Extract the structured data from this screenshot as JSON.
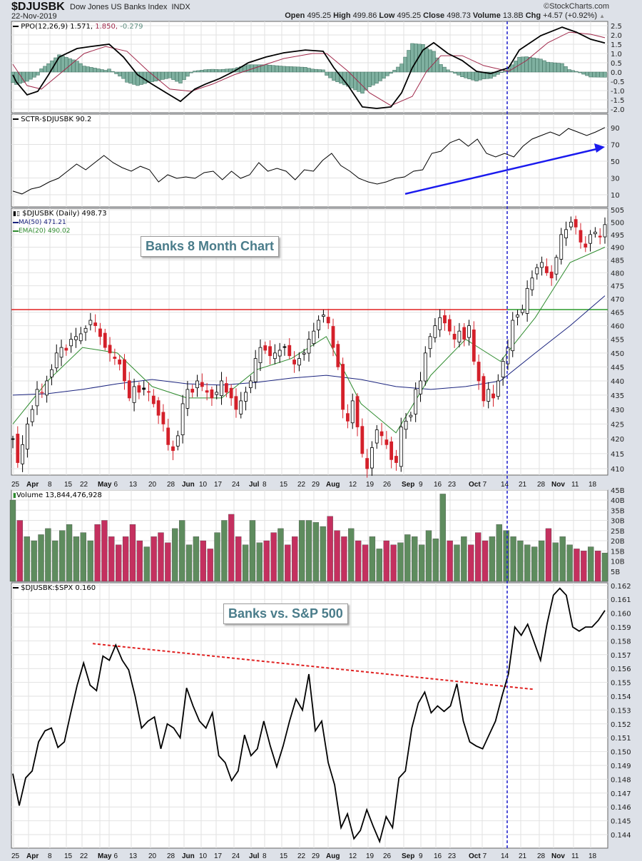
{
  "header": {
    "symbol": "$DJUSBK",
    "name": "Dow Jones US Banks Index",
    "exchange": "INDX",
    "date": "22-Nov-2019",
    "watermark": "©StockCharts.com",
    "open_label": "Open",
    "open": "495.25",
    "high_label": "High",
    "high": "499.86",
    "low_label": "Low",
    "low": "495.25",
    "close_label": "Close",
    "close": "498.73",
    "volume_label": "Volume",
    "volume": "13.8B",
    "chg_label": "Chg",
    "chg": "+4.57 (+0.92%)",
    "chg_icon": "triangle-up-icon"
  },
  "legends": {
    "ppo_main": "PPO(12,26,9) 1.571,",
    "ppo_signal": "1.850,",
    "ppo_hist": "-0.279",
    "sctr": "SCTR-$DJUSBK 90.2",
    "price": "$DJUSBK (Daily) 498.73",
    "ma50": "MA(50) 471.21",
    "ema20": "EMA(20) 490.02",
    "volume": "Volume 13,844,476,928",
    "ratio": "$DJUSBK:$SPX 0.160"
  },
  "annotations": {
    "price_box": "Banks 8 Month Chart",
    "ratio_box": "Banks vs. S&P 500"
  },
  "colors": {
    "candle_up": "#000000",
    "candle_down": "#d4202a",
    "ma50": "#1a237e",
    "ema20": "#2e8b2e",
    "ppo": "#000000",
    "signal": "#a0284a",
    "hist_fill": "#7fb0a0",
    "hist_stroke": "#3f6f5f",
    "vol_up": "#5e8c5e",
    "vol_down": "#c4305f",
    "resistance": "#e02020",
    "support": "#2a9a2a",
    "event_line": "#1a1acc",
    "arrow": "#1a1aee",
    "trend": "#e02020"
  },
  "chart_data": {
    "type": "multi-panel financial chart",
    "x_axis": {
      "unit": "trading-day index (0 = 25 Mar 2019, 166 = 22 Nov 2019)",
      "ticks": [
        {
          "d": 0.2,
          "label": "25",
          "month": false
        },
        {
          "d": 4.4,
          "label": "Apr",
          "month": true
        },
        {
          "d": 10.4,
          "label": "8",
          "month": false
        },
        {
          "d": 15,
          "label": "15",
          "month": false
        },
        {
          "d": 19.4,
          "label": "22",
          "month": false
        },
        {
          "d": 24.4,
          "label": "May",
          "month": true
        },
        {
          "d": 27,
          "label": "6",
          "month": false
        },
        {
          "d": 33.2,
          "label": "13",
          "month": false
        },
        {
          "d": 38.6,
          "label": "20",
          "month": false
        },
        {
          "d": 43.8,
          "label": "28",
          "month": false
        },
        {
          "d": 48,
          "label": "Jun",
          "month": true
        },
        {
          "d": 52.8,
          "label": "10",
          "month": false
        },
        {
          "d": 57,
          "label": "17",
          "month": false
        },
        {
          "d": 62,
          "label": "24",
          "month": false
        },
        {
          "d": 66.8,
          "label": "Jul",
          "month": true
        },
        {
          "d": 70.6,
          "label": "8",
          "month": false
        },
        {
          "d": 75.4,
          "label": "15",
          "month": false
        },
        {
          "d": 80.4,
          "label": "22",
          "month": false
        },
        {
          "d": 84.4,
          "label": "29",
          "month": false
        },
        {
          "d": 88.4,
          "label": "Aug",
          "month": true
        },
        {
          "d": 94.8,
          "label": "12",
          "month": false
        },
        {
          "d": 99.6,
          "label": "19",
          "month": false
        },
        {
          "d": 104.4,
          "label": "26",
          "month": false
        },
        {
          "d": 109.6,
          "label": "Sep",
          "month": true
        },
        {
          "d": 114.4,
          "label": "9",
          "month": false
        },
        {
          "d": 118.6,
          "label": "16",
          "month": false
        },
        {
          "d": 122.6,
          "label": "23",
          "month": false
        },
        {
          "d": 128.4,
          "label": "Oct",
          "month": true
        },
        {
          "d": 131.6,
          "label": "7",
          "month": false
        },
        {
          "d": 137.4,
          "label": "14",
          "month": false
        },
        {
          "d": 142.4,
          "label": "21",
          "month": false
        },
        {
          "d": 147.6,
          "label": "28",
          "month": false
        },
        {
          "d": 151.6,
          "label": "Nov",
          "month": true
        },
        {
          "d": 157.2,
          "label": "11",
          "month": false
        },
        {
          "d": 162,
          "label": "18",
          "month": false
        }
      ],
      "event_line_day": 138.6
    },
    "ppo": {
      "ticks": [
        "2.5",
        "2.0",
        "1.5",
        "1.0",
        "0.5",
        "0.0",
        "-0.5",
        "-1.0",
        "-1.5",
        "-2.0"
      ],
      "range": [
        -2.0,
        2.5
      ],
      "line": [
        [
          0,
          -0.15
        ],
        [
          1,
          -0.54
        ],
        [
          4,
          -1.23
        ],
        [
          7,
          -1.04
        ],
        [
          10,
          -0.15
        ],
        [
          13,
          0.81
        ],
        [
          18,
          1.27
        ],
        [
          22,
          1.38
        ],
        [
          27,
          1.5
        ],
        [
          31,
          0.81
        ],
        [
          35,
          -0.15
        ],
        [
          39,
          -0.65
        ],
        [
          43,
          -1.12
        ],
        [
          47,
          -1.58
        ],
        [
          51,
          -0.92
        ],
        [
          54,
          -0.65
        ],
        [
          58,
          -0.35
        ],
        [
          62,
          0.04
        ],
        [
          66,
          0.5
        ],
        [
          71,
          0.81
        ],
        [
          76,
          1.04
        ],
        [
          82,
          1.19
        ],
        [
          87,
          1.12
        ],
        [
          90,
          0.23
        ],
        [
          94,
          -0.73
        ],
        [
          98,
          -1.88
        ],
        [
          102,
          -1.96
        ],
        [
          106,
          -1.88
        ],
        [
          109,
          -1.12
        ],
        [
          112,
          0.23
        ],
        [
          115,
          1.19
        ],
        [
          118,
          1.58
        ],
        [
          122,
          1.0
        ],
        [
          126,
          0.62
        ],
        [
          130,
          0.04
        ],
        [
          134,
          -0.08
        ],
        [
          139,
          0.23
        ],
        [
          142,
          1.19
        ],
        [
          148,
          1.96
        ],
        [
          154,
          2.42
        ],
        [
          158,
          2.15
        ],
        [
          162,
          1.77
        ],
        [
          166,
          1.57
        ]
      ],
      "signal": [
        [
          0,
          0.42
        ],
        [
          4,
          -0.73
        ],
        [
          8,
          -0.92
        ],
        [
          14,
          0.04
        ],
        [
          20,
          1.0
        ],
        [
          26,
          1.38
        ],
        [
          32,
          1.12
        ],
        [
          38,
          0.04
        ],
        [
          44,
          -0.92
        ],
        [
          50,
          -1.04
        ],
        [
          56,
          -0.65
        ],
        [
          62,
          -0.15
        ],
        [
          68,
          0.23
        ],
        [
          76,
          0.73
        ],
        [
          84,
          1.0
        ],
        [
          88,
          1.0
        ],
        [
          94,
          0.04
        ],
        [
          100,
          -1.12
        ],
        [
          106,
          -1.81
        ],
        [
          112,
          -1.31
        ],
        [
          116,
          0.04
        ],
        [
          120,
          0.88
        ],
        [
          126,
          0.88
        ],
        [
          132,
          0.35
        ],
        [
          139,
          0.04
        ],
        [
          144,
          0.62
        ],
        [
          150,
          1.58
        ],
        [
          156,
          2.15
        ],
        [
          162,
          2.04
        ],
        [
          166,
          1.85
        ]
      ]
    },
    "sctr": {
      "ticks": [
        "90",
        "70",
        "50",
        "30",
        "10"
      ],
      "range": [
        10,
        90
      ],
      "values": [
        14.3,
        10.9,
        16.8,
        19.4,
        25.3,
        29.6,
        38.1,
        46.6,
        39.8,
        48.3,
        56.8,
        48.3,
        42.3,
        38.1,
        44,
        39.8,
        25.3,
        33.8,
        29.6,
        31.3,
        29.6,
        36.4,
        38.1,
        27.9,
        38.1,
        29.6,
        33.8,
        48.3,
        38.1,
        41.5,
        38.1,
        27.9,
        39.8,
        38.1,
        50.9,
        59.4,
        44.9,
        38.1,
        29.6,
        25.3,
        22.8,
        25.3,
        29.6,
        31.3,
        38.1,
        39.8,
        59.4,
        61.9,
        72.1,
        76.4,
        67.9,
        76.4,
        59.4,
        55.1,
        59.4,
        55.1,
        67.9,
        76.4,
        80.6,
        84.9,
        80.6,
        89.1,
        84.9,
        80.6,
        84.9,
        90.2
      ],
      "arrow": {
        "from": [
          110,
          11
        ],
        "to": [
          166,
          67
        ]
      }
    },
    "price": {
      "scale": "log",
      "ticks": [
        "505",
        "500",
        "495",
        "490",
        "485",
        "480",
        "475",
        "470",
        "465",
        "460",
        "455",
        "450",
        "445",
        "440",
        "435",
        "430",
        "425",
        "420",
        "415",
        "410"
      ],
      "range": [
        410,
        505
      ],
      "closes": [
        420,
        412,
        418,
        425,
        430,
        437,
        436,
        440,
        444,
        450,
        452,
        451,
        455,
        456,
        457,
        459,
        462,
        460,
        456,
        452,
        450,
        448,
        446,
        440,
        434,
        438,
        436,
        437,
        436,
        432,
        428,
        425,
        418,
        416,
        421,
        432,
        437,
        436,
        440,
        438,
        436,
        434,
        436,
        440,
        436,
        434,
        430,
        433,
        436,
        440,
        448,
        452,
        451,
        449,
        450,
        451,
        452,
        449,
        446,
        448,
        450,
        455,
        458,
        462,
        464,
        461,
        452,
        445,
        430,
        426,
        433,
        424,
        415,
        410,
        417,
        423,
        421,
        418,
        413,
        412,
        424,
        426,
        428,
        437,
        440,
        450,
        456,
        460,
        463,
        461,
        458,
        455,
        458,
        455,
        460,
        447,
        440,
        433,
        437,
        434,
        440,
        447,
        452,
        462,
        464,
        466,
        474,
        478,
        482,
        484,
        480,
        478,
        486,
        495,
        497,
        500,
        498,
        492,
        490,
        495,
        496,
        494,
        499
      ],
      "ma50": [
        435,
        435.5,
        437,
        439,
        440.5,
        439,
        438.5,
        439.5,
        441,
        442,
        440.5,
        438,
        437,
        438,
        440,
        450,
        460,
        471.21
      ],
      "ema20": [
        425,
        440,
        452,
        450,
        438,
        434,
        434,
        444,
        448,
        456,
        432,
        422,
        442,
        455,
        447,
        463,
        484,
        490.02
      ],
      "resistance_level": 466
    },
    "volume": {
      "ticks": [
        "45B",
        "40B",
        "35B",
        "30B",
        "25B",
        "20B",
        "15B",
        "10B",
        "5B"
      ],
      "range_billions": [
        0,
        45
      ],
      "values_billions": [
        40,
        30,
        22,
        20,
        23,
        26,
        20,
        25,
        28,
        22,
        24,
        20,
        28,
        30,
        22,
        18,
        22,
        28,
        20,
        17,
        22,
        24,
        19,
        26,
        30,
        18,
        22,
        20,
        16,
        24,
        30,
        33,
        22,
        18,
        30,
        19,
        20,
        24,
        26,
        18,
        22,
        30,
        30,
        29,
        27,
        32,
        25,
        22,
        26,
        20,
        18,
        22,
        16,
        20,
        18,
        19,
        23,
        22,
        18,
        25,
        21,
        43,
        20,
        18,
        22,
        18,
        24,
        20,
        22,
        28,
        25,
        22,
        20,
        18,
        17,
        20,
        26,
        19,
        22,
        18,
        16,
        15,
        17,
        15,
        14
      ]
    },
    "ratio": {
      "ticks": [
        "0.162",
        "0.161",
        "0.160",
        "0.159",
        "0.158",
        "0.157",
        "0.156",
        "0.155",
        "0.154",
        "0.153",
        "0.152",
        "0.151",
        "0.150",
        "0.149",
        "0.148",
        "0.147",
        "0.146",
        "0.145",
        "0.144"
      ],
      "range": [
        0.144,
        0.162
      ],
      "values": [
        0.1484,
        0.1461,
        0.1481,
        0.1486,
        0.1507,
        0.1515,
        0.1517,
        0.1503,
        0.1507,
        0.1528,
        0.1548,
        0.1564,
        0.1548,
        0.1544,
        0.1569,
        0.1566,
        0.1577,
        0.1566,
        0.1559,
        0.154,
        0.1517,
        0.1522,
        0.1525,
        0.1502,
        0.152,
        0.1517,
        0.151,
        0.1546,
        0.1533,
        0.1522,
        0.1517,
        0.1528,
        0.1497,
        0.1492,
        0.1479,
        0.1486,
        0.1512,
        0.1497,
        0.1502,
        0.1522,
        0.1504,
        0.1489,
        0.1504,
        0.1522,
        0.1538,
        0.153,
        0.1556,
        0.1515,
        0.1522,
        0.1492,
        0.1476,
        0.1445,
        0.1455,
        0.1437,
        0.1443,
        0.1458,
        0.1446,
        0.1435,
        0.1453,
        0.1445,
        0.1481,
        0.1486,
        0.1517,
        0.1535,
        0.1543,
        0.1528,
        0.1533,
        0.1529,
        0.1533,
        0.1549,
        0.1522,
        0.1507,
        0.1504,
        0.1502,
        0.1512,
        0.1522,
        0.154,
        0.1556,
        0.159,
        0.1584,
        0.1592,
        0.1579,
        0.1566,
        0.1592,
        0.1613,
        0.1618,
        0.1613,
        0.159,
        0.1587,
        0.159,
        0.159,
        0.1595,
        0.1602
      ],
      "trendline": {
        "from": [
          22.4,
          0.1578
        ],
        "to": [
          146,
          0.1545
        ]
      }
    }
  }
}
